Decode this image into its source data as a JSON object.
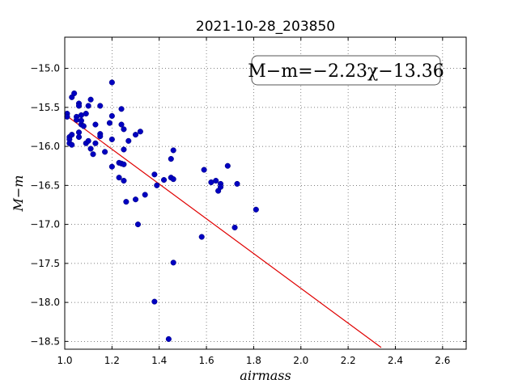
{
  "chart_data": {
    "type": "scatter",
    "title": "2021-10-28_203850",
    "xlabel": "airmass",
    "ylabel": "M−m",
    "xlim": [
      1.0,
      2.7
    ],
    "ylim": [
      -18.6,
      -14.6
    ],
    "y_inverted": true,
    "grid": true,
    "x_ticks": [
      1.0,
      1.2,
      1.4,
      1.6,
      1.8,
      2.0,
      2.2,
      2.4,
      2.6
    ],
    "x_tick_labels": [
      "1.0",
      "1.2",
      "1.4",
      "1.6",
      "1.8",
      "2.0",
      "2.2",
      "2.4",
      "2.6"
    ],
    "y_ticks": [
      -15.0,
      -15.5,
      -16.0,
      -16.5,
      -17.0,
      -17.5,
      -18.0,
      -18.5
    ],
    "y_tick_labels": [
      "−15.0",
      "−15.5",
      "−16.0",
      "−16.5",
      "−17.0",
      "−17.5",
      "−18.0",
      "−18.5"
    ],
    "annotation": "M−m=−2.23χ−13.36",
    "annotation_position": "top-right",
    "fit": {
      "slope": -2.23,
      "intercept": -13.36,
      "x_range": [
        1.0,
        2.34
      ],
      "color": "#e00000"
    },
    "point_color": "#0000c0",
    "points": [
      [
        1.01,
        -15.58
      ],
      [
        1.01,
        -15.62
      ],
      [
        1.02,
        -15.88
      ],
      [
        1.02,
        -15.91
      ],
      [
        1.02,
        -15.96
      ],
      [
        1.03,
        -15.98
      ],
      [
        1.03,
        -15.85
      ],
      [
        1.03,
        -15.37
      ],
      [
        1.04,
        -15.32
      ],
      [
        1.05,
        -15.62
      ],
      [
        1.05,
        -15.66
      ],
      [
        1.06,
        -15.45
      ],
      [
        1.06,
        -15.48
      ],
      [
        1.06,
        -15.82
      ],
      [
        1.06,
        -15.88
      ],
      [
        1.07,
        -15.6
      ],
      [
        1.07,
        -15.72
      ],
      [
        1.07,
        -15.67
      ],
      [
        1.08,
        -15.74
      ],
      [
        1.09,
        -15.58
      ],
      [
        1.09,
        -15.96
      ],
      [
        1.1,
        -15.93
      ],
      [
        1.1,
        -15.48
      ],
      [
        1.11,
        -15.4
      ],
      [
        1.11,
        -16.03
      ],
      [
        1.12,
        -16.1
      ],
      [
        1.13,
        -15.72
      ],
      [
        1.13,
        -15.96
      ],
      [
        1.15,
        -15.48
      ],
      [
        1.15,
        -15.84
      ],
      [
        1.15,
        -15.87
      ],
      [
        1.17,
        -16.07
      ],
      [
        1.19,
        -15.7
      ],
      [
        1.2,
        -15.18
      ],
      [
        1.2,
        -15.61
      ],
      [
        1.2,
        -15.91
      ],
      [
        1.2,
        -16.26
      ],
      [
        1.23,
        -16.21
      ],
      [
        1.23,
        -16.4
      ],
      [
        1.24,
        -15.52
      ],
      [
        1.24,
        -15.72
      ],
      [
        1.24,
        -16.22
      ],
      [
        1.25,
        -15.78
      ],
      [
        1.25,
        -16.04
      ],
      [
        1.25,
        -16.23
      ],
      [
        1.25,
        -16.44
      ],
      [
        1.26,
        -16.71
      ],
      [
        1.27,
        -15.93
      ],
      [
        1.3,
        -16.68
      ],
      [
        1.3,
        -15.85
      ],
      [
        1.31,
        -17.0
      ],
      [
        1.32,
        -15.81
      ],
      [
        1.34,
        -16.62
      ],
      [
        1.38,
        -16.36
      ],
      [
        1.38,
        -17.99
      ],
      [
        1.39,
        -16.5
      ],
      [
        1.42,
        -16.43
      ],
      [
        1.44,
        -18.47
      ],
      [
        1.45,
        -16.4
      ],
      [
        1.45,
        -16.16
      ],
      [
        1.46,
        -16.42
      ],
      [
        1.46,
        -16.05
      ],
      [
        1.46,
        -17.49
      ],
      [
        1.58,
        -17.16
      ],
      [
        1.59,
        -16.3
      ],
      [
        1.62,
        -16.46
      ],
      [
        1.64,
        -16.44
      ],
      [
        1.65,
        -16.57
      ],
      [
        1.66,
        -16.48
      ],
      [
        1.66,
        -16.52
      ],
      [
        1.69,
        -16.25
      ],
      [
        1.72,
        -17.04
      ],
      [
        1.73,
        -16.48
      ],
      [
        1.81,
        -16.81
      ]
    ]
  }
}
